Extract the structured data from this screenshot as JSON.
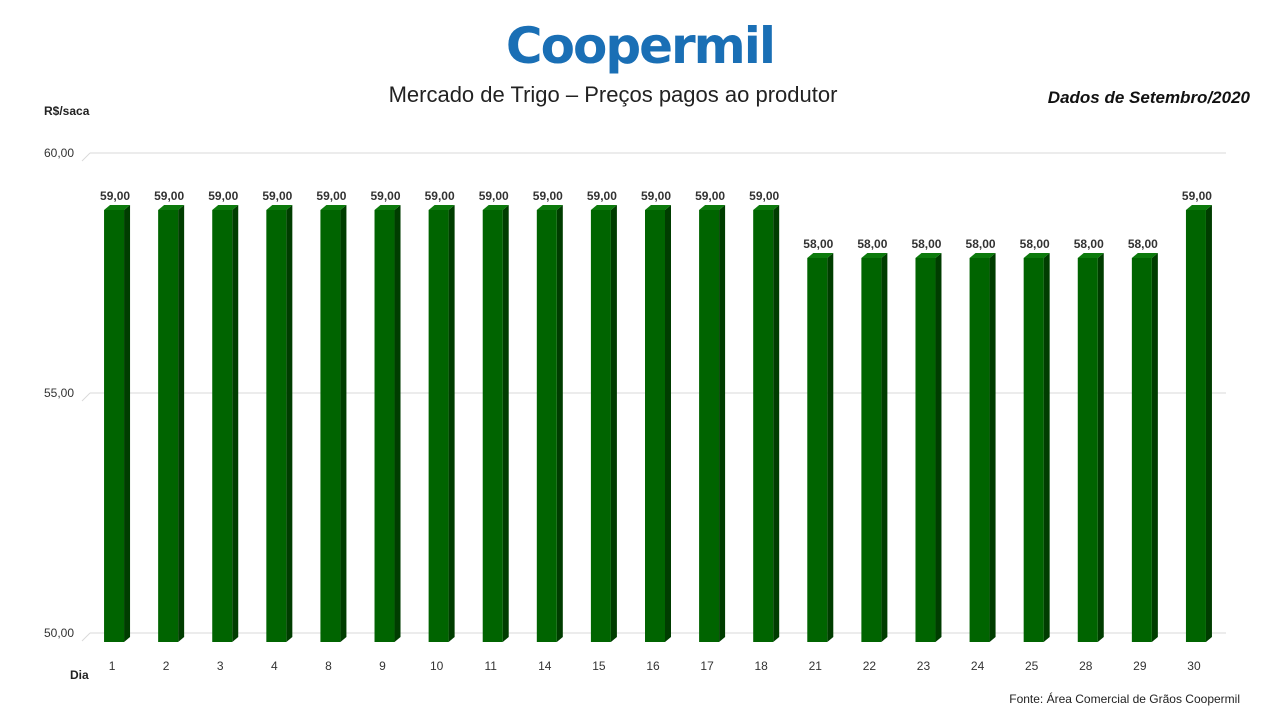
{
  "logo_text": "Coopermil",
  "title": "Mercado de Trigo – Preços pagos ao produtor",
  "date_label": "Dados de Setembro/2020",
  "source": "Fonte: Área Comercial de Grãos Coopermil",
  "colors": {
    "bar": "#006400",
    "bar_side": "#003d00",
    "bar_top": "#0c7a0c",
    "logo": "#1a6fb5"
  },
  "chart_data": {
    "type": "bar",
    "title": "Mercado de Trigo – Preços pagos ao produtor",
    "xlabel": "Dia",
    "ylabel": "R$/saca",
    "ylim": [
      50,
      60
    ],
    "yticks": [
      "50,00",
      "55,00",
      "60,00"
    ],
    "grid": true,
    "categories": [
      "1",
      "2",
      "3",
      "4",
      "8",
      "9",
      "10",
      "11",
      "14",
      "15",
      "16",
      "17",
      "18",
      "21",
      "22",
      "23",
      "24",
      "25",
      "28",
      "29",
      "30"
    ],
    "values": [
      59,
      59,
      59,
      59,
      59,
      59,
      59,
      59,
      59,
      59,
      59,
      59,
      59,
      58,
      58,
      58,
      58,
      58,
      58,
      58,
      59
    ],
    "value_labels": [
      "59,00",
      "59,00",
      "59,00",
      "59,00",
      "59,00",
      "59,00",
      "59,00",
      "59,00",
      "59,00",
      "59,00",
      "59,00",
      "59,00",
      "59,00",
      "58,00",
      "58,00",
      "58,00",
      "58,00",
      "58,00",
      "58,00",
      "58,00",
      "59,00"
    ]
  }
}
